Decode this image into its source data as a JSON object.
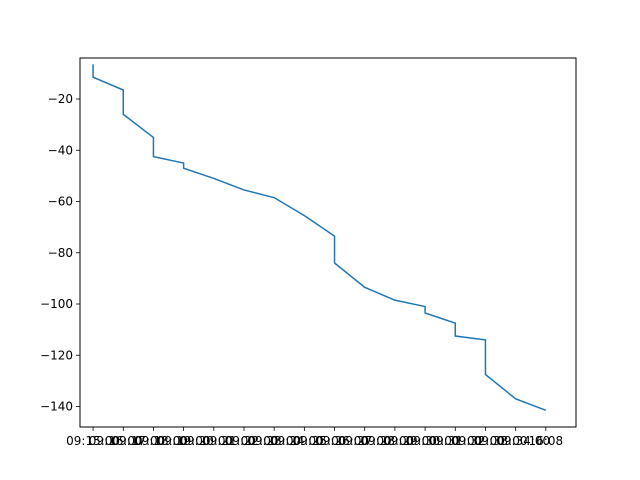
{
  "chart_data": {
    "type": "line",
    "title": "",
    "xlabel": "",
    "ylabel": "",
    "x_ticks": [
      "09:15",
      "09:16",
      "09:17",
      "09:18",
      "09:19",
      "09:20",
      "09:21",
      "09:22",
      "09:23",
      "09:24",
      "09:25",
      "09:26",
      "09:27",
      "09:28",
      "09:29",
      "09:30"
    ],
    "x_tick_labels": [
      "09:15:00",
      "09:16:00",
      "09:17:00",
      "09:18:00",
      "09:19:00",
      "09:20:00",
      "09:21:00",
      "09:22:00",
      "09:23:00",
      "09:24:00",
      "09:25:00",
      "09:26:00",
      "09:27:00",
      "09:28:00",
      "09:29:00",
      "09:30:00",
      "09:31:00",
      "09:32:00",
      "09:33:00",
      "09:34:00",
      "16:08"
    ],
    "xlim": [
      "09:14:34",
      "09:31:00"
    ],
    "y_ticks": [
      -20,
      -40,
      -60,
      -80,
      -100,
      -120,
      -140
    ],
    "ylim": [
      -148,
      -4
    ],
    "grid": false,
    "series": [
      {
        "color": "#1f77b4",
        "points": [
          [
            "09:15",
            -6.5
          ],
          [
            "09:15",
            -11.5
          ],
          [
            "09:16",
            -16.5
          ],
          [
            "09:16",
            -26
          ],
          [
            "09:17",
            -35
          ],
          [
            "09:17",
            -42.5
          ],
          [
            "09:18",
            -45
          ],
          [
            "09:18",
            -47
          ],
          [
            "09:19",
            -51
          ],
          [
            "09:20",
            -55.5
          ],
          [
            "09:21",
            -58.5
          ],
          [
            "09:22",
            -65.5
          ],
          [
            "09:23",
            -73.5
          ],
          [
            "09:23",
            -84
          ],
          [
            "09:24",
            -93.5
          ],
          [
            "09:25",
            -98.5
          ],
          [
            "09:26",
            -101
          ],
          [
            "09:26",
            -103.5
          ],
          [
            "09:27",
            -107.5
          ],
          [
            "09:27",
            -112.5
          ],
          [
            "09:28",
            -114
          ],
          [
            "09:28",
            -127.5
          ],
          [
            "09:29",
            -137
          ],
          [
            "09:30",
            -141.5
          ]
        ]
      }
    ]
  }
}
